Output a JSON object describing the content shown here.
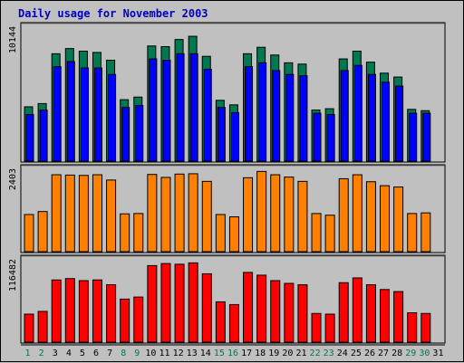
{
  "chart_data": {
    "type": "bar",
    "title": "Daily usage for November 2003",
    "categories": [
      "1",
      "2",
      "3",
      "4",
      "5",
      "6",
      "7",
      "8",
      "9",
      "10",
      "11",
      "12",
      "13",
      "14",
      "15",
      "16",
      "17",
      "18",
      "19",
      "20",
      "21",
      "22",
      "23",
      "24",
      "25",
      "26",
      "27",
      "28",
      "29",
      "30",
      "31"
    ],
    "weekend_days": [
      "1",
      "2",
      "8",
      "9",
      "15",
      "16",
      "22",
      "23",
      "29",
      "30"
    ],
    "colors": {
      "hits": "#007850",
      "files": "#0000ff",
      "sites": "#ff8000",
      "kbytes": "#ff0000",
      "weekend_label": "#007850",
      "weekday_label": "#000000",
      "title": "#0000c0"
    },
    "panels": [
      {
        "id": "hits-files",
        "max_label": "10144",
        "ylim": [
          0,
          10144
        ],
        "series": [
          {
            "key": "hits",
            "values": [
              4200,
              4450,
              8300,
              8700,
              8500,
              8400,
              7800,
              4750,
              4950,
              8900,
              8850,
              9400,
              9650,
              8100,
              4700,
              4350,
              8300,
              8800,
              8200,
              7600,
              7500,
              3950,
              4050,
              7900,
              8500,
              7650,
              6800,
              6500,
              4000,
              3900,
              0
            ]
          },
          {
            "key": "files",
            "values": [
              3600,
              3950,
              7300,
              7700,
              7200,
              7200,
              6700,
              4150,
              4300,
              7900,
              7800,
              8300,
              8300,
              7100,
              4150,
              3750,
              7300,
              7600,
              7000,
              6700,
              6600,
              3700,
              3600,
              7000,
              7400,
              6700,
              6100,
              5800,
              3700,
              3700,
              0
            ]
          }
        ]
      },
      {
        "id": "sites",
        "max_label": "2403",
        "ylim": [
          0,
          2403
        ],
        "series": [
          {
            "key": "sites",
            "values": [
              1120,
              1210,
              2320,
              2310,
              2300,
              2320,
              2160,
              1140,
              1150,
              2330,
              2240,
              2340,
              2350,
              2120,
              1120,
              1050,
              2230,
              2420,
              2320,
              2250,
              2120,
              1150,
              1100,
              2200,
              2320,
              2110,
              1990,
              1950,
              1150,
              1170,
              0
            ]
          }
        ]
      },
      {
        "id": "kbytes",
        "max_label": "116482",
        "ylim": [
          0,
          116482
        ],
        "series": [
          {
            "key": "kbytes",
            "values": [
              41000,
              45000,
              91000,
              93000,
              90000,
              91000,
              84000,
              63000,
              66000,
              112000,
              115000,
              114000,
              116000,
              100000,
              59000,
              55000,
              102000,
              98000,
              90000,
              86000,
              84000,
              42000,
              41000,
              87000,
              94000,
              84000,
              77000,
              74000,
              43000,
              42000,
              0
            ]
          }
        ]
      }
    ]
  }
}
